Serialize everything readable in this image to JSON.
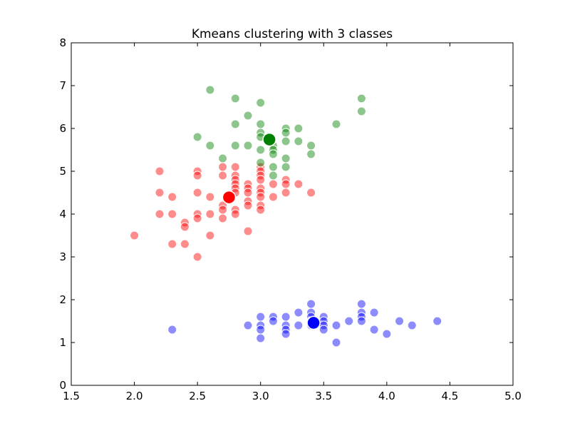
{
  "chart_data": {
    "type": "scatter",
    "title": "Kmeans clustering with 3 classes",
    "xlabel": "",
    "ylabel": "",
    "xlim": [
      1.5,
      5.0
    ],
    "ylim": [
      0,
      8
    ],
    "x_ticks": [
      "1.5",
      "2.0",
      "2.5",
      "3.0",
      "3.5",
      "4.0",
      "4.5",
      "5.0"
    ],
    "y_ticks": [
      "0",
      "1",
      "2",
      "3",
      "4",
      "5",
      "6",
      "7",
      "8"
    ],
    "grid": false,
    "series": [
      {
        "color": "#ff0000",
        "points": [
          [
            2.0,
            3.5
          ],
          [
            2.2,
            5.0
          ],
          [
            2.2,
            4.5
          ],
          [
            2.2,
            4.0
          ],
          [
            2.3,
            4.4
          ],
          [
            2.3,
            4.0
          ],
          [
            2.3,
            3.3
          ],
          [
            2.4,
            3.8
          ],
          [
            2.4,
            3.7
          ],
          [
            2.4,
            3.3
          ],
          [
            2.5,
            5.0
          ],
          [
            2.5,
            4.9
          ],
          [
            2.5,
            4.5
          ],
          [
            2.5,
            4.0
          ],
          [
            2.5,
            3.9
          ],
          [
            2.5,
            3.0
          ],
          [
            2.6,
            4.4
          ],
          [
            2.6,
            4.0
          ],
          [
            2.6,
            3.5
          ],
          [
            2.7,
            5.1
          ],
          [
            2.7,
            4.9
          ],
          [
            2.7,
            4.2
          ],
          [
            2.7,
            4.1
          ],
          [
            2.7,
            3.9
          ],
          [
            2.8,
            5.1
          ],
          [
            2.8,
            4.9
          ],
          [
            2.8,
            4.8
          ],
          [
            2.8,
            4.7
          ],
          [
            2.8,
            4.6
          ],
          [
            2.8,
            4.5
          ],
          [
            2.8,
            4.1
          ],
          [
            2.8,
            4.0
          ],
          [
            2.9,
            4.7
          ],
          [
            2.9,
            4.6
          ],
          [
            2.9,
            4.5
          ],
          [
            2.9,
            4.3
          ],
          [
            2.9,
            4.2
          ],
          [
            2.9,
            3.6
          ],
          [
            3.0,
            5.1
          ],
          [
            3.0,
            5.0
          ],
          [
            3.0,
            4.9
          ],
          [
            3.0,
            4.8
          ],
          [
            3.0,
            4.6
          ],
          [
            3.0,
            4.5
          ],
          [
            3.0,
            4.4
          ],
          [
            3.0,
            4.2
          ],
          [
            3.0,
            4.1
          ],
          [
            3.1,
            4.7
          ],
          [
            3.1,
            4.4
          ],
          [
            3.2,
            4.8
          ],
          [
            3.2,
            4.7
          ],
          [
            3.2,
            4.5
          ],
          [
            3.3,
            4.7
          ],
          [
            3.4,
            4.5
          ]
        ],
        "center": [
          2.75,
          4.39
        ]
      },
      {
        "color": "#008000",
        "points": [
          [
            2.5,
            5.8
          ],
          [
            2.6,
            6.9
          ],
          [
            2.6,
            5.6
          ],
          [
            2.7,
            5.3
          ],
          [
            2.8,
            6.7
          ],
          [
            2.8,
            6.1
          ],
          [
            2.8,
            5.6
          ],
          [
            2.9,
            6.3
          ],
          [
            2.9,
            5.6
          ],
          [
            3.0,
            6.6
          ],
          [
            3.0,
            6.1
          ],
          [
            3.0,
            5.9
          ],
          [
            3.0,
            5.8
          ],
          [
            3.0,
            5.5
          ],
          [
            3.0,
            5.2
          ],
          [
            3.1,
            5.6
          ],
          [
            3.1,
            5.5
          ],
          [
            3.1,
            5.4
          ],
          [
            3.1,
            5.1
          ],
          [
            3.1,
            4.9
          ],
          [
            3.2,
            6.0
          ],
          [
            3.2,
            5.9
          ],
          [
            3.2,
            5.7
          ],
          [
            3.2,
            5.3
          ],
          [
            3.2,
            5.1
          ],
          [
            3.3,
            6.0
          ],
          [
            3.3,
            5.7
          ],
          [
            3.4,
            5.6
          ],
          [
            3.4,
            5.4
          ],
          [
            3.6,
            6.1
          ],
          [
            3.8,
            6.7
          ],
          [
            3.8,
            6.4
          ]
        ],
        "center": [
          3.07,
          5.74
        ]
      },
      {
        "color": "#0000ff",
        "points": [
          [
            2.3,
            1.3
          ],
          [
            2.9,
            1.4
          ],
          [
            3.0,
            1.6
          ],
          [
            3.0,
            1.4
          ],
          [
            3.0,
            1.3
          ],
          [
            3.0,
            1.1
          ],
          [
            3.1,
            1.6
          ],
          [
            3.1,
            1.5
          ],
          [
            3.2,
            1.6
          ],
          [
            3.2,
            1.4
          ],
          [
            3.2,
            1.3
          ],
          [
            3.2,
            1.2
          ],
          [
            3.3,
            1.7
          ],
          [
            3.3,
            1.4
          ],
          [
            3.4,
            1.9
          ],
          [
            3.4,
            1.7
          ],
          [
            3.4,
            1.6
          ],
          [
            3.4,
            1.5
          ],
          [
            3.4,
            1.4
          ],
          [
            3.5,
            1.6
          ],
          [
            3.5,
            1.5
          ],
          [
            3.5,
            1.4
          ],
          [
            3.5,
            1.3
          ],
          [
            3.6,
            1.4
          ],
          [
            3.6,
            1.0
          ],
          [
            3.7,
            1.5
          ],
          [
            3.8,
            1.9
          ],
          [
            3.8,
            1.7
          ],
          [
            3.8,
            1.6
          ],
          [
            3.8,
            1.5
          ],
          [
            3.9,
            1.7
          ],
          [
            3.9,
            1.3
          ],
          [
            4.0,
            1.2
          ],
          [
            4.1,
            1.5
          ],
          [
            4.2,
            1.4
          ],
          [
            4.4,
            1.5
          ]
        ],
        "center": [
          3.42,
          1.46
        ]
      }
    ]
  }
}
